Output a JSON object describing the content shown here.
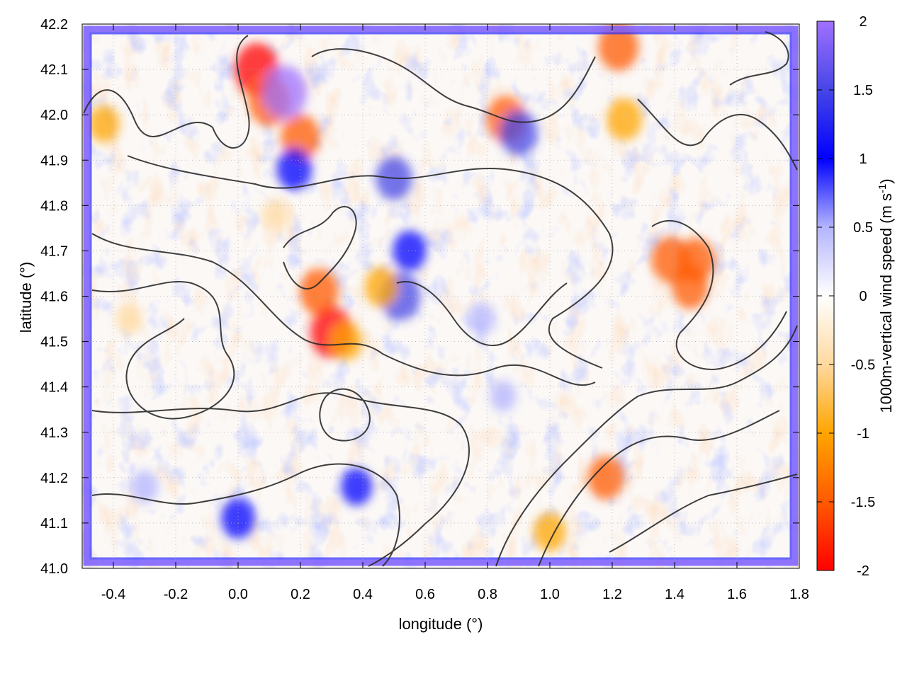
{
  "chart_data": {
    "type": "heatmap",
    "title": "",
    "xlabel": "longitude (°)",
    "ylabel": "latitude (°)",
    "xlim": [
      -0.5,
      1.8
    ],
    "ylim": [
      41.0,
      42.2
    ],
    "x_ticks": [
      "-0.4",
      "-0.2",
      "0.0",
      "0.2",
      "0.4",
      "0.6",
      "0.8",
      "1.0",
      "1.2",
      "1.4",
      "1.6",
      "1.8"
    ],
    "x_tick_values": [
      -0.4,
      -0.2,
      0.0,
      0.2,
      0.4,
      0.6,
      0.8,
      1.0,
      1.2,
      1.4,
      1.6,
      1.8
    ],
    "y_ticks": [
      "41.0",
      "41.1",
      "41.2",
      "41.3",
      "41.4",
      "41.5",
      "41.6",
      "41.7",
      "41.8",
      "41.9",
      "42.0",
      "42.1",
      "42.2"
    ],
    "y_tick_values": [
      41.0,
      41.1,
      41.2,
      41.3,
      41.4,
      41.5,
      41.6,
      41.7,
      41.8,
      41.9,
      42.0,
      42.1,
      42.2
    ],
    "grid": true,
    "colorbar": {
      "label_main": "1000m-vertical wind speed (m s",
      "label_sup": "-1",
      "label_close": ")",
      "range": [
        -2,
        2
      ],
      "ticks": [
        "2",
        "1.5",
        "1",
        "0.5",
        "0",
        "-0.5",
        "-1",
        "-1.5",
        "-2"
      ],
      "tick_values": [
        2,
        1.5,
        1,
        0.5,
        0,
        -0.5,
        -1,
        -1.5,
        -2
      ],
      "colormap": [
        {
          "v": -2,
          "color": "#ff0000"
        },
        {
          "v": -1.5,
          "color": "#ff5a00"
        },
        {
          "v": -1,
          "color": "#ffa500"
        },
        {
          "v": -0.5,
          "color": "#ffd9a0"
        },
        {
          "v": 0,
          "color": "#ffffff"
        },
        {
          "v": 0.5,
          "color": "#b4b4ff"
        },
        {
          "v": 1,
          "color": "#0000ff"
        },
        {
          "v": 1.5,
          "color": "#4646e6"
        },
        {
          "v": 2,
          "color": "#a070ff"
        }
      ]
    },
    "features": [
      {
        "lon": 0.06,
        "lat": 42.1,
        "value": -1.9
      },
      {
        "lon": 0.1,
        "lat": 42.03,
        "value": -1.7
      },
      {
        "lon": 0.15,
        "lat": 42.05,
        "value": 1.9
      },
      {
        "lon": 0.2,
        "lat": 41.95,
        "value": -1.5
      },
      {
        "lon": 0.18,
        "lat": 41.88,
        "value": 1.2
      },
      {
        "lon": -0.43,
        "lat": 41.98,
        "value": -0.9
      },
      {
        "lon": 1.22,
        "lat": 42.15,
        "value": -1.6
      },
      {
        "lon": 1.24,
        "lat": 41.99,
        "value": -1.2
      },
      {
        "lon": 0.86,
        "lat": 41.99,
        "value": -1.5
      },
      {
        "lon": 0.9,
        "lat": 41.96,
        "value": 1.4
      },
      {
        "lon": 1.39,
        "lat": 41.68,
        "value": -1.5
      },
      {
        "lon": 1.45,
        "lat": 41.62,
        "value": -1.3
      },
      {
        "lon": 1.47,
        "lat": 41.68,
        "value": -1.3
      },
      {
        "lon": 0.26,
        "lat": 41.61,
        "value": -1.5
      },
      {
        "lon": 0.3,
        "lat": 41.52,
        "value": -1.8
      },
      {
        "lon": 0.52,
        "lat": 41.6,
        "value": 1.6
      },
      {
        "lon": 0.46,
        "lat": 41.62,
        "value": -1.1
      },
      {
        "lon": 0.5,
        "lat": 41.86,
        "value": 1.3
      },
      {
        "lon": 0.55,
        "lat": 41.7,
        "value": 1.1
      },
      {
        "lon": 1.18,
        "lat": 41.2,
        "value": -1.3
      },
      {
        "lon": 1.0,
        "lat": 41.08,
        "value": -1.0
      },
      {
        "lon": 0.0,
        "lat": 41.11,
        "value": 1.1
      },
      {
        "lon": 0.38,
        "lat": 41.18,
        "value": 0.9
      },
      {
        "lon": -0.3,
        "lat": 41.18,
        "value": 0.6
      },
      {
        "lon": 0.35,
        "lat": 41.5,
        "value": -0.9
      },
      {
        "lon": 0.78,
        "lat": 41.55,
        "value": 0.6
      },
      {
        "lon": 0.85,
        "lat": 41.38,
        "value": 0.5
      },
      {
        "lon": -0.35,
        "lat": 41.55,
        "value": -0.5
      },
      {
        "lon": 0.12,
        "lat": 41.78,
        "value": -0.5
      }
    ]
  }
}
